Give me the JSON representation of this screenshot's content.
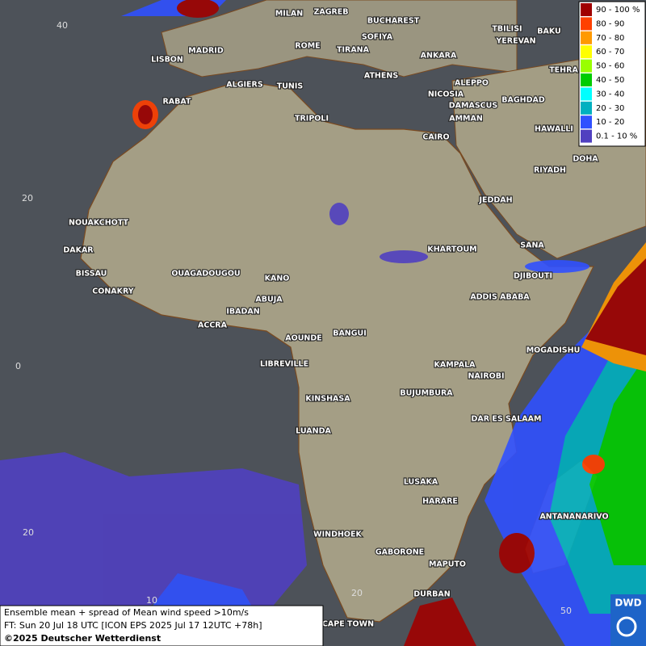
{
  "legend": [
    {
      "label": "90 - 100 %",
      "color": "#a00000"
    },
    {
      "label": "80 - 90",
      "color": "#ff4000"
    },
    {
      "label": "70 - 80",
      "color": "#ff9900"
    },
    {
      "label": "60 - 70",
      "color": "#ffff00"
    },
    {
      "label": "50 - 60",
      "color": "#99ff00"
    },
    {
      "label": "40 - 50",
      "color": "#00cc00"
    },
    {
      "label": "30 - 40",
      "color": "#00ffff"
    },
    {
      "label": "20 - 30",
      "color": "#00b0c0"
    },
    {
      "label": "10 - 20",
      "color": "#3050ff"
    },
    {
      "label": "0.1 - 10 %",
      "color": "#5040c0"
    }
  ],
  "cities": [
    "MILAN",
    "ZAGREB",
    "BUCHAREST",
    "TBILISI",
    "BAKU",
    "MADRID",
    "ROME",
    "SOFIYA",
    "YEREVAN",
    "TIRANA",
    "ANKARA",
    "LISBON",
    "TEHRA",
    "ATHENS",
    "ALGIERS",
    "TUNIS",
    "ALEPPO",
    "RABAT",
    "NICOSIA",
    "BAGHDAD",
    "DAMASCUS",
    "TRIPOLI",
    "AMMAN",
    "HAWALLI",
    "CAIRO",
    "DOHA",
    "RIYADH",
    "JEDDAH",
    "NOUAKCHOTT",
    "SANA",
    "DAKAR",
    "KHARTOUM",
    "BISSAU",
    "DJIBOUTI",
    "OUAGADOUGOU",
    "KANO",
    "CONAKRY",
    "ABUJA",
    "ADDIS ABABA",
    "IBADAN",
    "ACCRA",
    "AOUNDE",
    "BANGUI",
    "MOGADISHU",
    "LIBREVILLE",
    "KAMPALA",
    "NAIROBI",
    "KINSHASA",
    "BUJUMBURA",
    "DAR ES SALAAM",
    "LUANDA",
    "LUSAKA",
    "HARARE",
    "ANTANANARIVO",
    "WINDHOEK",
    "GABORONE",
    "MAPUTO",
    "DURBAN",
    "CAPE TOWN"
  ],
  "grid_labels": [
    "40",
    "20",
    "0",
    "20",
    "10",
    "20",
    "50"
  ],
  "footer": {
    "description": "Ensemble mean + spread of Mean wind speed >10m/s",
    "forecast_time": "FT: Sun 20 Jul 18 UTC [ICON EPS 2025 Jul 17 12UTC +78h]",
    "copyright": "©2025 Deutscher Wetterdienst"
  },
  "logo": "DWD"
}
